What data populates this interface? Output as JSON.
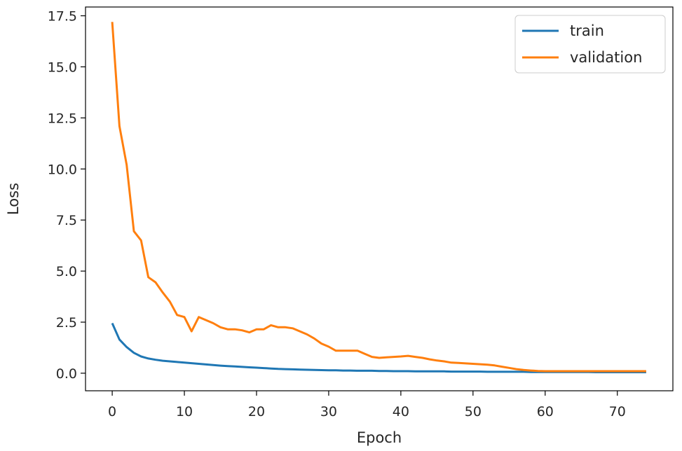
{
  "chart_data": {
    "type": "line",
    "title": "",
    "xlabel": "Epoch",
    "ylabel": "Loss",
    "xlim": [
      -3.7,
      77.7
    ],
    "ylim": [
      -0.86,
      17.93
    ],
    "xticks": [
      "0",
      "10",
      "20",
      "30",
      "40",
      "50",
      "60",
      "70"
    ],
    "yticks": [
      "0.0",
      "2.5",
      "5.0",
      "7.5",
      "10.0",
      "12.5",
      "15.0",
      "17.5"
    ],
    "grid": false,
    "legend_position": "top-right",
    "x": [
      0,
      1,
      2,
      3,
      4,
      5,
      6,
      7,
      8,
      9,
      10,
      11,
      12,
      13,
      14,
      15,
      16,
      17,
      18,
      19,
      20,
      21,
      22,
      23,
      24,
      25,
      26,
      27,
      28,
      29,
      30,
      31,
      32,
      33,
      34,
      35,
      36,
      37,
      38,
      39,
      40,
      41,
      42,
      43,
      44,
      45,
      46,
      47,
      48,
      49,
      50,
      51,
      52,
      53,
      54,
      55,
      56,
      57,
      58,
      59,
      60,
      61,
      62,
      63,
      64,
      65,
      66,
      67,
      68,
      69,
      70,
      71,
      72,
      73,
      74
    ],
    "series": [
      {
        "name": "train",
        "color": "#1f77b4",
        "values": [
          2.45,
          1.65,
          1.28,
          1.0,
          0.82,
          0.72,
          0.66,
          0.61,
          0.58,
          0.55,
          0.52,
          0.49,
          0.46,
          0.43,
          0.4,
          0.37,
          0.35,
          0.33,
          0.31,
          0.29,
          0.27,
          0.25,
          0.23,
          0.21,
          0.2,
          0.19,
          0.18,
          0.17,
          0.16,
          0.15,
          0.14,
          0.14,
          0.13,
          0.13,
          0.12,
          0.12,
          0.12,
          0.11,
          0.11,
          0.1,
          0.1,
          0.1,
          0.09,
          0.09,
          0.09,
          0.09,
          0.09,
          0.08,
          0.08,
          0.08,
          0.08,
          0.08,
          0.07,
          0.07,
          0.07,
          0.07,
          0.07,
          0.07,
          0.06,
          0.06,
          0.06,
          0.06,
          0.06,
          0.06,
          0.06,
          0.06,
          0.06,
          0.05,
          0.05,
          0.05,
          0.05,
          0.05,
          0.05,
          0.05,
          0.05
        ]
      },
      {
        "name": "validation",
        "color": "#ff7f0e",
        "values": [
          17.2,
          12.1,
          10.2,
          6.95,
          6.5,
          4.7,
          4.45,
          3.95,
          3.5,
          2.85,
          2.75,
          2.05,
          2.75,
          2.6,
          2.45,
          2.25,
          2.15,
          2.15,
          2.1,
          2.0,
          2.15,
          2.15,
          2.35,
          2.25,
          2.25,
          2.2,
          2.05,
          1.9,
          1.7,
          1.45,
          1.3,
          1.1,
          1.1,
          1.1,
          1.1,
          0.95,
          0.8,
          0.75,
          0.78,
          0.8,
          0.82,
          0.85,
          0.8,
          0.75,
          0.68,
          0.62,
          0.58,
          0.52,
          0.5,
          0.48,
          0.46,
          0.44,
          0.42,
          0.38,
          0.32,
          0.26,
          0.2,
          0.16,
          0.13,
          0.11,
          0.1,
          0.1,
          0.1,
          0.1,
          0.1,
          0.1,
          0.1,
          0.1,
          0.1,
          0.1,
          0.1,
          0.1,
          0.1,
          0.1,
          0.1
        ]
      }
    ]
  }
}
